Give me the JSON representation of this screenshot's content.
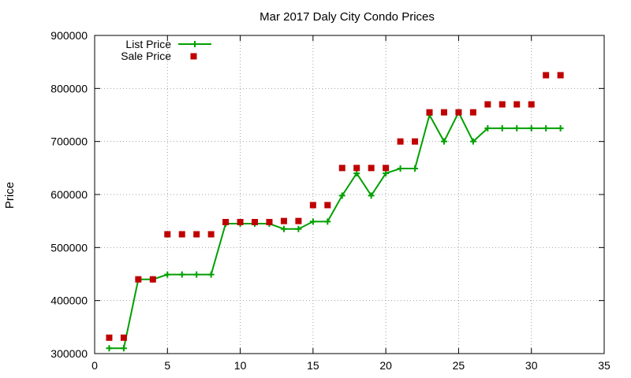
{
  "chart_data": {
    "type": "line",
    "title": "Mar 2017 Daly City Condo Prices",
    "xlabel": "",
    "ylabel": "Price",
    "xlim": [
      0,
      35
    ],
    "ylim": [
      300000,
      900000
    ],
    "x_ticks": [
      0,
      5,
      10,
      15,
      20,
      25,
      30,
      35
    ],
    "y_ticks": [
      300000,
      400000,
      500000,
      600000,
      700000,
      800000,
      900000
    ],
    "grid": true,
    "legend_position": "top-left",
    "series": [
      {
        "name": "List Price",
        "style": "line-with-plus-markers",
        "color": "#00a000",
        "x": [
          1,
          2,
          3,
          4,
          5,
          6,
          7,
          8,
          9,
          10,
          11,
          12,
          13,
          14,
          15,
          16,
          17,
          18,
          19,
          20,
          21,
          22,
          23,
          24,
          25,
          26,
          27,
          28,
          29,
          30,
          31,
          32
        ],
        "values": [
          310000,
          310000,
          440000,
          440000,
          449000,
          449000,
          449000,
          449000,
          545000,
          545000,
          545000,
          545000,
          535000,
          535000,
          549000,
          549000,
          598000,
          640000,
          598000,
          640000,
          649000,
          649000,
          750000,
          700000,
          755000,
          700000,
          725000,
          725000,
          725000,
          725000,
          725000,
          725000
        ]
      },
      {
        "name": "Sale Price",
        "style": "square-markers",
        "color": "#c00000",
        "x": [
          1,
          2,
          3,
          4,
          5,
          6,
          7,
          8,
          9,
          10,
          11,
          12,
          13,
          14,
          15,
          16,
          17,
          18,
          19,
          20,
          21,
          22,
          23,
          24,
          25,
          26,
          27,
          28,
          29,
          30,
          31,
          32
        ],
        "values": [
          330000,
          330000,
          440000,
          440000,
          525000,
          525000,
          525000,
          525000,
          548000,
          548000,
          548000,
          548000,
          550000,
          550000,
          580000,
          580000,
          650000,
          650000,
          650000,
          650000,
          700000,
          700000,
          755000,
          755000,
          755000,
          755000,
          770000,
          770000,
          770000,
          770000,
          825000,
          825000
        ]
      }
    ]
  }
}
